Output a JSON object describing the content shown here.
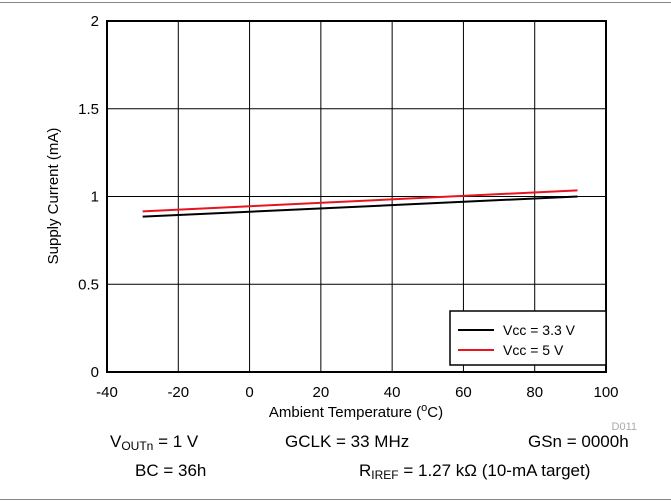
{
  "chart_data": {
    "type": "line",
    "xlabel": "Ambient Temperature",
    "xlabel_unit_prefix": "o",
    "xlabel_unit": "C",
    "ylabel": "Supply Current (mA)",
    "xlim": [
      -40,
      100
    ],
    "ylim": [
      0,
      2
    ],
    "x_ticks": [
      "-40",
      "-20",
      "0",
      "20",
      "40",
      "60",
      "80",
      "100"
    ],
    "y_ticks": [
      "0",
      "0.5",
      "1",
      "1.5",
      "2"
    ],
    "grid": true,
    "legend_position": "bottom-right",
    "series": [
      {
        "name": "Vcc = 3.3 V",
        "color": "#000000",
        "x": [
          -30,
          92
        ],
        "y": [
          0.885,
          1.0
        ]
      },
      {
        "name": "Vcc = 5 V",
        "color": "#e8141e",
        "x": [
          -30,
          92
        ],
        "y": [
          0.915,
          1.035
        ]
      }
    ],
    "figure_code": "D011"
  },
  "conditions": {
    "vout_main": "V",
    "vout_sub": "OUTn",
    "vout_value": " = 1 V",
    "gclk": "GCLK = 33 MHz",
    "gsn": "GSn = 0000h",
    "bc": "BC = 36h",
    "riref_main": "R",
    "riref_sub": "IREF",
    "riref_value": " = 1.27 kΩ (10-mA target)"
  }
}
